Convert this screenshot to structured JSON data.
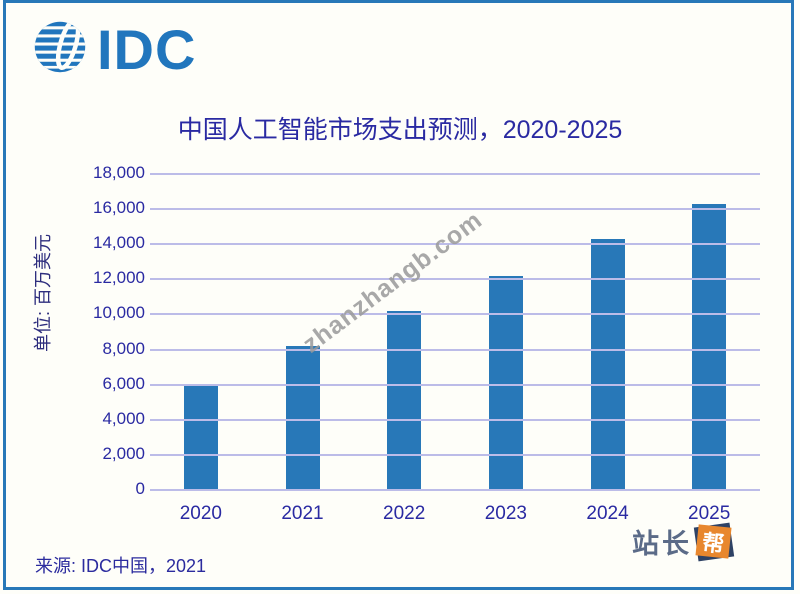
{
  "page": {
    "background": "#fefef9",
    "frame_color": "#2878B8"
  },
  "logo": {
    "text": "IDC",
    "color": "#2176BD",
    "icon": "striped-globe-icon"
  },
  "chart_data": {
    "type": "bar",
    "title": "中国人工智能市场支出预测，2020-2025",
    "categories": [
      "2020",
      "2021",
      "2022",
      "2023",
      "2024",
      "2025"
    ],
    "values": [
      6000,
      8200,
      10200,
      12200,
      14300,
      16300
    ],
    "xlabel": "",
    "ylabel": "单位: 百万美元",
    "ylim": [
      0,
      18000
    ],
    "ytick_step": 2000,
    "yticks": [
      "0",
      "2,000",
      "4,000",
      "6,000",
      "8,000",
      "10,000",
      "12,000",
      "14,000",
      "16,000",
      "18,000"
    ],
    "grid": true,
    "legend": "none",
    "bar_color": "#2878B8",
    "gridline_color": "#bcbce8",
    "tick_label_color": "#2A2AA2"
  },
  "watermark": {
    "text": "zhanzhangb.com",
    "color": "#9a9a9a"
  },
  "footer": {
    "source": "来源: IDC中国，2021"
  },
  "badge": {
    "prefix": "站长",
    "suffix": "帮",
    "text_color": "#5B6B88",
    "square_color": "#E8872E",
    "accent_color": "#2E4265"
  }
}
